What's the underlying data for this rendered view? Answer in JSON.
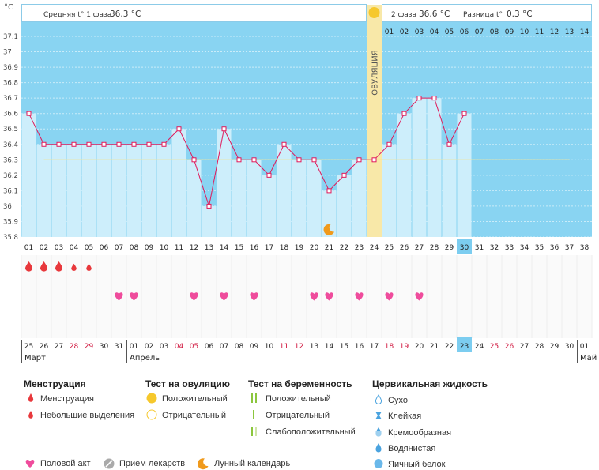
{
  "chart_data": {
    "type": "line",
    "yunit": "°C",
    "ylim": [
      35.8,
      37.1
    ],
    "yticks": [
      "37.1",
      "37",
      "36.9",
      "36.8",
      "36.7",
      "36.6",
      "36.5",
      "36.4",
      "36.3",
      "36.2",
      "36.1",
      "36",
      "35.9",
      "35.8"
    ],
    "cycle_days": [
      "01",
      "02",
      "03",
      "04",
      "05",
      "06",
      "07",
      "08",
      "09",
      "10",
      "11",
      "12",
      "13",
      "14",
      "15",
      "16",
      "17",
      "18",
      "19",
      "20",
      "21",
      "22",
      "23",
      "24",
      "25",
      "26",
      "27",
      "28",
      "29",
      "30",
      "31",
      "32",
      "33",
      "34",
      "35",
      "36",
      "37",
      "38"
    ],
    "current_day": "30",
    "ovulation_day": 24,
    "ovulation_label": "ОВУЛЯЦИЯ",
    "phase1_avg_label": "Средняя t° 1 фаза",
    "phase1_avg_value": "36.3 °C",
    "phase2_label": "2 фаза",
    "phase2_value": "36.6 °C",
    "diff_label": "Разница t°",
    "diff_value": "0.3 °C",
    "phase2_days": [
      "01",
      "02",
      "03",
      "04",
      "05",
      "06",
      "07",
      "08",
      "09",
      "10",
      "11",
      "12",
      "13",
      "14"
    ],
    "coverline": 36.3,
    "temps": [
      36.6,
      36.4,
      36.4,
      36.4,
      36.4,
      36.4,
      36.4,
      36.4,
      36.4,
      36.4,
      36.5,
      36.3,
      36.0,
      36.5,
      36.3,
      36.3,
      36.2,
      36.4,
      36.3,
      36.3,
      36.1,
      36.2,
      36.3,
      36.3,
      36.4,
      36.6,
      36.7,
      36.7,
      36.4,
      36.6
    ],
    "menstruation": [
      {
        "day": 1,
        "type": "full"
      },
      {
        "day": 2,
        "type": "full"
      },
      {
        "day": 3,
        "type": "full"
      },
      {
        "day": 4,
        "type": "light"
      },
      {
        "day": 5,
        "type": "light"
      }
    ],
    "intercourse_days": [
      7,
      8,
      12,
      14,
      16,
      20,
      21,
      23,
      25,
      27
    ],
    "moon_day": 21,
    "dates": [
      {
        "t": "25",
        "red": false
      },
      {
        "t": "26",
        "red": false
      },
      {
        "t": "27",
        "red": false
      },
      {
        "t": "28",
        "red": true
      },
      {
        "t": "29",
        "red": true
      },
      {
        "t": "30",
        "red": false
      },
      {
        "t": "31",
        "red": false
      },
      {
        "t": "01",
        "red": false
      },
      {
        "t": "02",
        "red": false
      },
      {
        "t": "03",
        "red": false
      },
      {
        "t": "04",
        "red": true
      },
      {
        "t": "05",
        "red": true
      },
      {
        "t": "06",
        "red": false
      },
      {
        "t": "07",
        "red": false
      },
      {
        "t": "08",
        "red": false
      },
      {
        "t": "09",
        "red": false
      },
      {
        "t": "10",
        "red": false
      },
      {
        "t": "11",
        "red": true
      },
      {
        "t": "12",
        "red": true
      },
      {
        "t": "13",
        "red": false
      },
      {
        "t": "14",
        "red": false
      },
      {
        "t": "15",
        "red": false
      },
      {
        "t": "16",
        "red": false
      },
      {
        "t": "17",
        "red": false
      },
      {
        "t": "18",
        "red": true
      },
      {
        "t": "19",
        "red": true
      },
      {
        "t": "20",
        "red": false
      },
      {
        "t": "21",
        "red": false
      },
      {
        "t": "22",
        "red": false
      },
      {
        "t": "23",
        "red": false
      },
      {
        "t": "24",
        "red": false
      },
      {
        "t": "25",
        "red": true
      },
      {
        "t": "26",
        "red": true
      },
      {
        "t": "27",
        "red": false
      },
      {
        "t": "28",
        "red": false
      },
      {
        "t": "29",
        "red": false
      },
      {
        "t": "30",
        "red": false
      },
      {
        "t": "01",
        "red": false
      }
    ],
    "months": [
      {
        "name": "Март",
        "start": 1
      },
      {
        "name": "Апрель",
        "start": 8
      },
      {
        "name": "Май",
        "start": 38
      }
    ]
  },
  "colors": {
    "phase_bg": "#89d4f2",
    "bar": "#cdeefb",
    "line": "#e0195a",
    "ovulation": "#f8e8a8",
    "coverline": "#f0e59a",
    "heart": "#ef4c9c",
    "drop": "#e8383c",
    "moon": "#f09a1c"
  },
  "legend": {
    "menstruation": {
      "title": "Менструация",
      "items": [
        "Менструация",
        "Небольшие выделения"
      ]
    },
    "ovulation_test": {
      "title": "Тест на овуляцию",
      "items": [
        "Положительный",
        "Отрицательный"
      ]
    },
    "pregnancy_test": {
      "title": "Тест на беременность",
      "items": [
        "Положительный",
        "Отрицательный",
        "Слабоположительный"
      ]
    },
    "cervical": {
      "title": "Цервикальная жидкость",
      "items": [
        "Сухо",
        "Клейкая",
        "Кремообразная",
        "Водянистая",
        "Яичный белок"
      ]
    },
    "bottom": {
      "intercourse": "Половой акт",
      "medicine": "Прием лекарств",
      "moon": "Лунный календарь"
    }
  }
}
